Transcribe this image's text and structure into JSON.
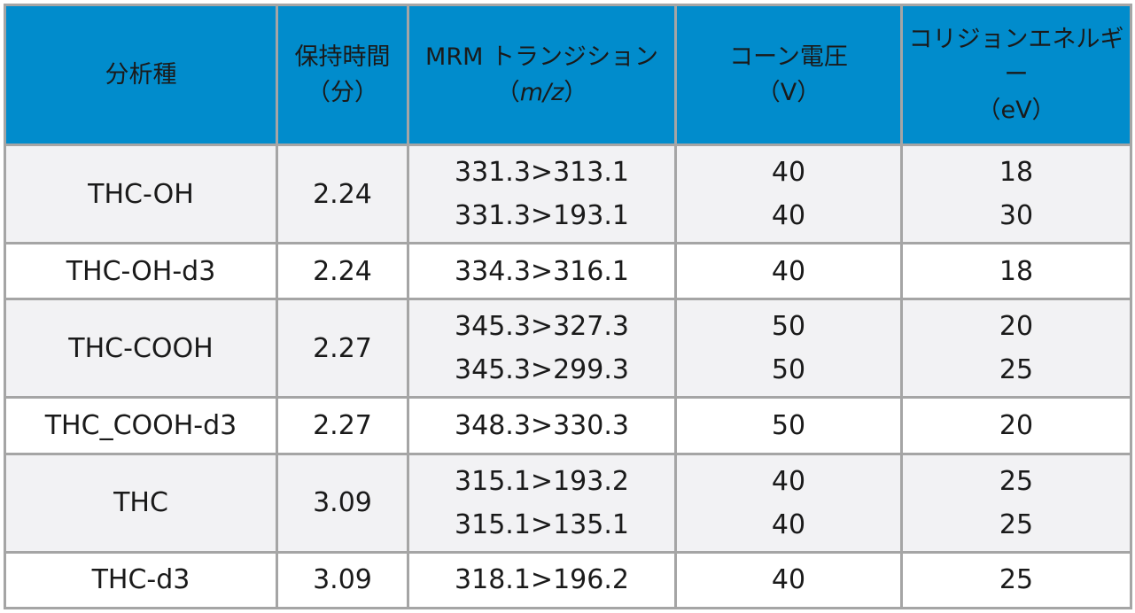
{
  "headers": {
    "analyte": "分析種",
    "rt": "保持時間",
    "rt_unit": "（分）",
    "mrm": "MRM トランジション",
    "mrm_unit_open": "（",
    "mrm_unit_it": "m/z",
    "mrm_unit_close": "）",
    "cone": "コーン電圧",
    "cone_unit": "（V）",
    "ce": "コリジョンエネルギー",
    "ce_unit": "（eV）"
  },
  "rows": [
    {
      "analyte": "THC-OH",
      "rt": "2.24",
      "transitions": [
        "331.3>313.1",
        "331.3>193.1"
      ],
      "cone": [
        "40",
        "40"
      ],
      "ce": [
        "18",
        "30"
      ]
    },
    {
      "analyte": "THC-OH-d3",
      "rt": "2.24",
      "transitions": [
        "334.3>316.1"
      ],
      "cone": [
        "40"
      ],
      "ce": [
        "18"
      ]
    },
    {
      "analyte": "THC-COOH",
      "rt": "2.27",
      "transitions": [
        "345.3>327.3",
        "345.3>299.3"
      ],
      "cone": [
        "50",
        "50"
      ],
      "ce": [
        "20",
        "25"
      ]
    },
    {
      "analyte": "THC_COOH-d3",
      "rt": "2.27",
      "transitions": [
        "348.3>330.3"
      ],
      "cone": [
        "50"
      ],
      "ce": [
        "20"
      ]
    },
    {
      "analyte": "THC",
      "rt": "3.09",
      "transitions": [
        "315.1>193.2",
        "315.1>135.1"
      ],
      "cone": [
        "40",
        "40"
      ],
      "ce": [
        "25",
        "25"
      ]
    },
    {
      "analyte": "THC-d3",
      "rt": "3.09",
      "transitions": [
        "318.1>196.2"
      ],
      "cone": [
        "40"
      ],
      "ce": [
        "25"
      ]
    }
  ]
}
